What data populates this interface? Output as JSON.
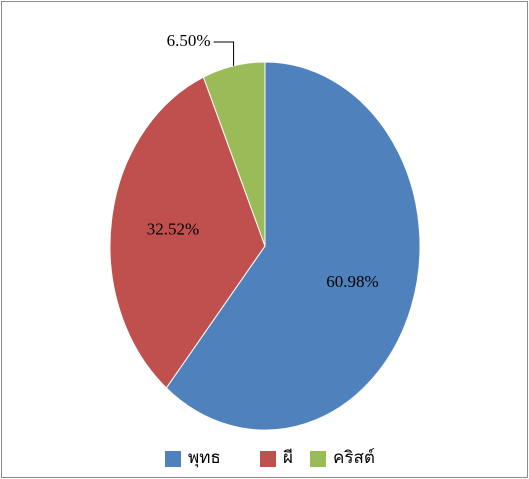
{
  "chart_data": {
    "type": "pie",
    "categories": [
      "พุทธ",
      "ผี",
      "คริสต์"
    ],
    "values": [
      60.98,
      32.52,
      6.5
    ],
    "value_labels": [
      "60.98%",
      "32.52%",
      "6.50%"
    ],
    "colors": [
      "#4f81bd",
      "#c0504d",
      "#9bbb59"
    ],
    "legend": "bottom"
  }
}
